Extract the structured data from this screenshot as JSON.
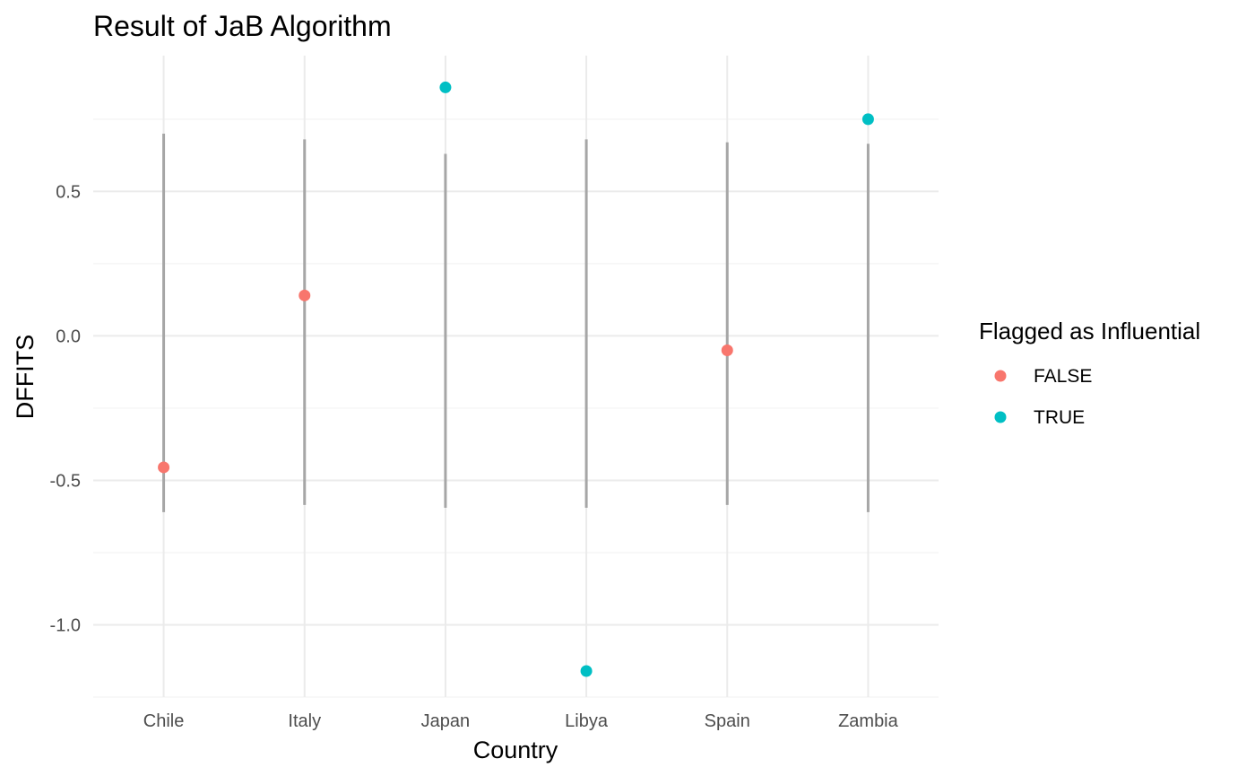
{
  "chart_data": {
    "type": "scatter",
    "title": "Result of JaB Algorithm",
    "xlabel": "Country",
    "ylabel": "DFFITS",
    "categories": [
      "Chile",
      "Italy",
      "Japan",
      "Libya",
      "Spain",
      "Zambia"
    ],
    "ylim": [
      -1.25,
      0.97
    ],
    "y_ticks": [
      -1.0,
      -0.5,
      0.0,
      0.5
    ],
    "y_tick_labels": [
      "-1.0",
      "-0.5",
      "0.0",
      "0.5"
    ],
    "grid": true,
    "legend_position": "right",
    "legend_title": "Flagged as Influential",
    "series": [
      {
        "name": "FALSE",
        "color": "#F8766D"
      },
      {
        "name": "TRUE",
        "color": "#00BFC4"
      }
    ],
    "points": [
      {
        "category": "Chile",
        "y": -0.455,
        "flagged": "FALSE"
      },
      {
        "category": "Italy",
        "y": 0.14,
        "flagged": "FALSE"
      },
      {
        "category": "Japan",
        "y": 0.86,
        "flagged": "TRUE"
      },
      {
        "category": "Libya",
        "y": -1.16,
        "flagged": "TRUE"
      },
      {
        "category": "Spain",
        "y": -0.05,
        "flagged": "FALSE"
      },
      {
        "category": "Zambia",
        "y": 0.75,
        "flagged": "TRUE"
      }
    ],
    "intervals": [
      {
        "category": "Chile",
        "low": -0.61,
        "high": 0.7
      },
      {
        "category": "Italy",
        "low": -0.585,
        "high": 0.68
      },
      {
        "category": "Japan",
        "low": -0.595,
        "high": 0.63
      },
      {
        "category": "Libya",
        "low": -0.595,
        "high": 0.68
      },
      {
        "category": "Spain",
        "low": -0.585,
        "high": 0.67
      },
      {
        "category": "Zambia",
        "low": -0.61,
        "high": 0.665
      }
    ],
    "interval_color": "#A6A6A6"
  }
}
